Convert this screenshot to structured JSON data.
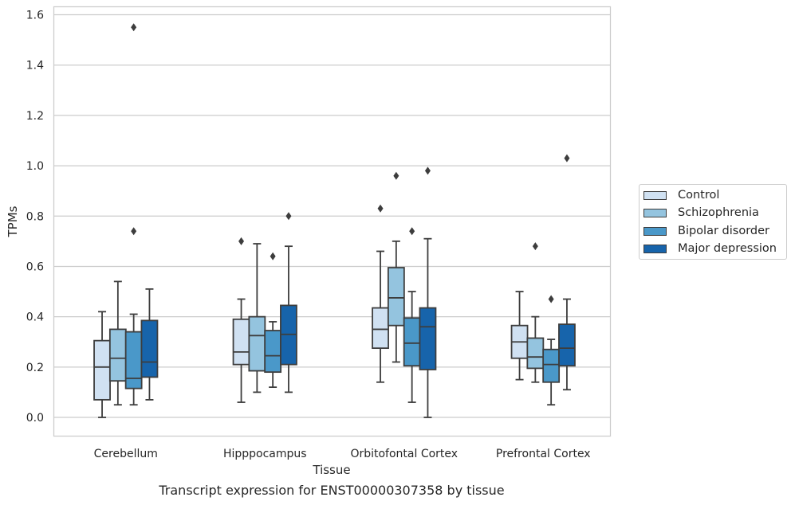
{
  "chart_data": {
    "type": "box",
    "title": "",
    "xlabel": "Tissue",
    "ylabel": "TPMs",
    "caption": "Transcript expression for ENST00000307358 by tissue",
    "ylim": [
      -0.075,
      1.63
    ],
    "yticks": [
      "0.0",
      "0.2",
      "0.4",
      "0.6",
      "0.8",
      "1.0",
      "1.2",
      "1.4",
      "1.6"
    ],
    "grid": true,
    "legend_position": "right",
    "categories": [
      "Cerebellum",
      "Hipppocampus",
      "Orbitofontal Cortex",
      "Prefrontal Cortex"
    ],
    "series": [
      {
        "name": "Control",
        "color": "#d0e1f2",
        "boxes": [
          {
            "whislo": 0.0,
            "q1": 0.07,
            "med": 0.2,
            "q3": 0.305,
            "whishi": 0.42,
            "fliers": []
          },
          {
            "whislo": 0.06,
            "q1": 0.21,
            "med": 0.26,
            "q3": 0.39,
            "whishi": 0.47,
            "fliers": [
              0.7
            ]
          },
          {
            "whislo": 0.14,
            "q1": 0.275,
            "med": 0.35,
            "q3": 0.435,
            "whishi": 0.66,
            "fliers": [
              0.83
            ]
          },
          {
            "whislo": 0.15,
            "q1": 0.235,
            "med": 0.3,
            "q3": 0.365,
            "whishi": 0.5,
            "fliers": []
          }
        ]
      },
      {
        "name": "Schizophrenia",
        "color": "#94c4df",
        "boxes": [
          {
            "whislo": 0.05,
            "q1": 0.145,
            "med": 0.235,
            "q3": 0.35,
            "whishi": 0.54,
            "fliers": []
          },
          {
            "whislo": 0.1,
            "q1": 0.185,
            "med": 0.325,
            "q3": 0.4,
            "whishi": 0.69,
            "fliers": []
          },
          {
            "whislo": 0.22,
            "q1": 0.365,
            "med": 0.475,
            "q3": 0.595,
            "whishi": 0.7,
            "fliers": [
              0.96
            ]
          },
          {
            "whislo": 0.14,
            "q1": 0.195,
            "med": 0.24,
            "q3": 0.315,
            "whishi": 0.4,
            "fliers": [
              0.68
            ]
          }
        ]
      },
      {
        "name": "Bipolar disorder",
        "color": "#4a98c9",
        "boxes": [
          {
            "whislo": 0.05,
            "q1": 0.115,
            "med": 0.155,
            "q3": 0.34,
            "whishi": 0.41,
            "fliers": [
              1.55,
              0.74
            ]
          },
          {
            "whislo": 0.12,
            "q1": 0.18,
            "med": 0.245,
            "q3": 0.345,
            "whishi": 0.38,
            "fliers": [
              0.64
            ]
          },
          {
            "whislo": 0.06,
            "q1": 0.205,
            "med": 0.295,
            "q3": 0.395,
            "whishi": 0.5,
            "fliers": [
              0.74
            ]
          },
          {
            "whislo": 0.05,
            "q1": 0.14,
            "med": 0.21,
            "q3": 0.27,
            "whishi": 0.31,
            "fliers": [
              0.47
            ]
          }
        ]
      },
      {
        "name": "Major depression",
        "color": "#1764ab",
        "boxes": [
          {
            "whislo": 0.07,
            "q1": 0.16,
            "med": 0.22,
            "q3": 0.385,
            "whishi": 0.51,
            "fliers": []
          },
          {
            "whislo": 0.1,
            "q1": 0.21,
            "med": 0.33,
            "q3": 0.445,
            "whishi": 0.68,
            "fliers": [
              0.8
            ]
          },
          {
            "whislo": 0.0,
            "q1": 0.19,
            "med": 0.36,
            "q3": 0.435,
            "whishi": 0.71,
            "fliers": [
              0.98
            ]
          },
          {
            "whislo": 0.11,
            "q1": 0.205,
            "med": 0.275,
            "q3": 0.37,
            "whishi": 0.47,
            "fliers": [
              1.03
            ]
          }
        ]
      }
    ]
  }
}
